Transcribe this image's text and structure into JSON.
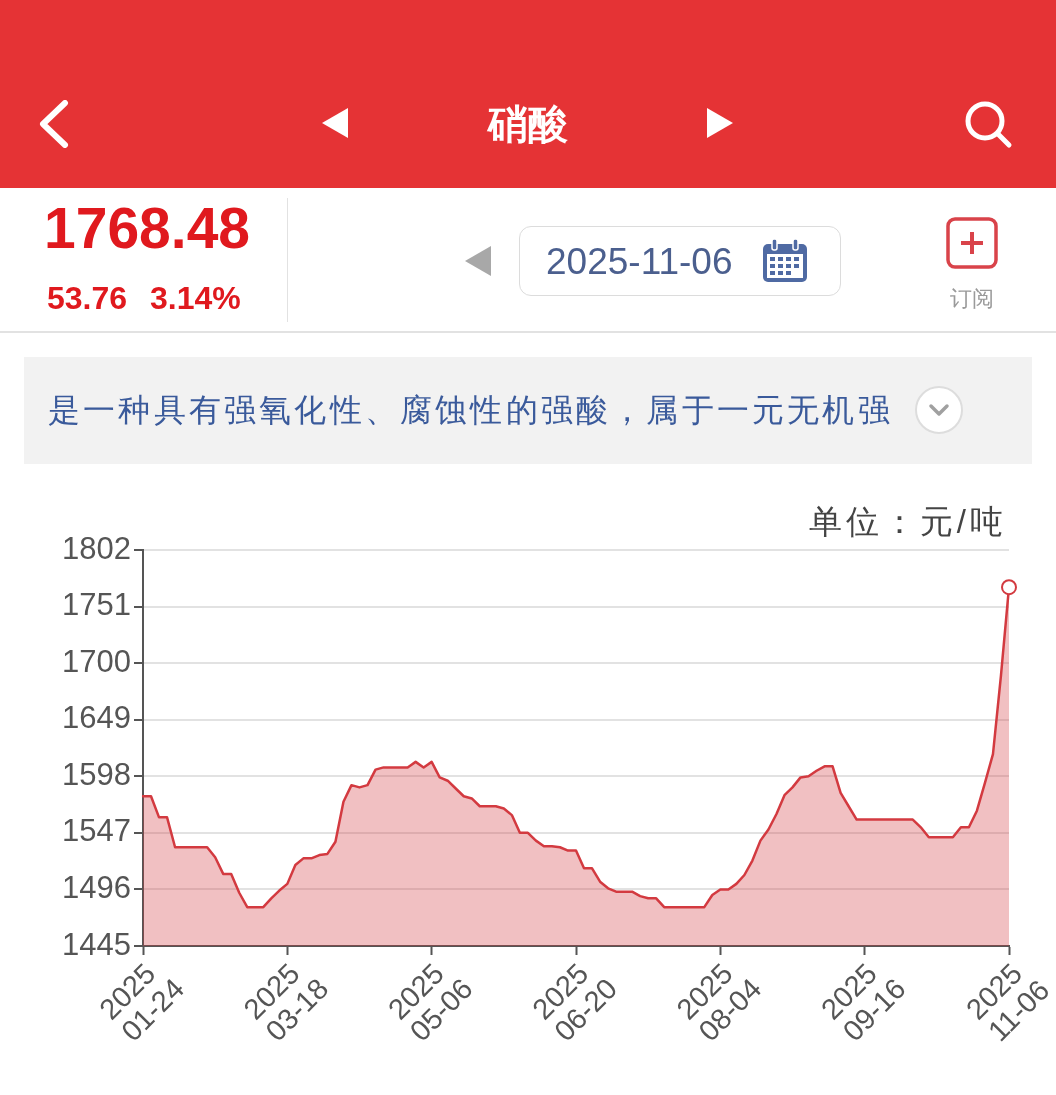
{
  "chart_data": {
    "type": "area",
    "title": "硝酸",
    "ylabel": "单位：元/吨",
    "annotations": [
      "1768.48",
      "53.76",
      "3.14%",
      "2025-11-06",
      "订阅",
      "是一种具有强氧化性、腐蚀性的强酸，属于一元无机强"
    ],
    "categories": [
      "2025\n01-24",
      null,
      null,
      null,
      null,
      null,
      null,
      null,
      null,
      null,
      null,
      null,
      null,
      null,
      null,
      null,
      null,
      null,
      "2025\n03-18",
      null,
      null,
      null,
      null,
      null,
      null,
      null,
      null,
      null,
      null,
      null,
      null,
      null,
      null,
      null,
      null,
      null,
      "2025\n05-06",
      null,
      null,
      null,
      null,
      null,
      null,
      null,
      null,
      null,
      null,
      null,
      null,
      null,
      null,
      null,
      null,
      null,
      "2025\n06-20",
      null,
      null,
      null,
      null,
      null,
      null,
      null,
      null,
      null,
      null,
      null,
      null,
      null,
      null,
      null,
      null,
      null,
      "2025\n08-04",
      null,
      null,
      null,
      null,
      null,
      null,
      null,
      null,
      null,
      null,
      null,
      null,
      null,
      null,
      null,
      null,
      null,
      "2025\n09-16",
      null,
      null,
      null,
      null,
      null,
      null,
      null,
      null,
      null,
      null,
      null,
      null,
      null,
      null,
      null,
      null,
      null,
      "2025\n11-06"
    ],
    "series": [
      {
        "type": "area",
        "color": "#d33a40",
        "values": [
          1580,
          1580,
          1561,
          1561,
          1534,
          1534,
          1534,
          1534,
          1534,
          1525,
          1510,
          1510,
          1493,
          1480,
          1480,
          1480,
          1488,
          1495,
          1501,
          1518,
          1524,
          1524,
          1527,
          1528,
          1539,
          1575,
          1590,
          1588,
          1590,
          1604,
          1606,
          1606,
          1606,
          1606,
          1611,
          1606,
          1611,
          1597,
          1594,
          1587,
          1580,
          1578,
          1571,
          1571,
          1571,
          1569,
          1563,
          1547,
          1547,
          1540,
          1535,
          1535,
          1534,
          1531,
          1531,
          1515,
          1515,
          1503,
          1497,
          1494,
          1494,
          1494,
          1490,
          1488,
          1488,
          1480,
          1480,
          1480,
          1480,
          1480,
          1480,
          1491,
          1496,
          1496,
          1501,
          1509,
          1522,
          1540,
          1550,
          1564,
          1581,
          1588,
          1597,
          1598,
          1603,
          1607,
          1607,
          1583,
          1571,
          1559,
          1559,
          1559,
          1559,
          1559,
          1559,
          1559,
          1559,
          1552,
          1543,
          1543,
          1543,
          1543,
          1552,
          1552,
          1567,
          1592,
          1618,
          1689,
          1768.48
        ]
      },
      {
        "type": "scatter",
        "color": "#d33a40",
        "marker": "circle",
        "x": [
          "2025\n11-06"
        ],
        "values": [
          1768.48
        ]
      }
    ],
    "ylim": [
      1445,
      1802
    ],
    "yticks": [
      1445,
      1496,
      1547,
      1598,
      1649,
      1700,
      1751,
      1802
    ],
    "grid": "y"
  }
}
